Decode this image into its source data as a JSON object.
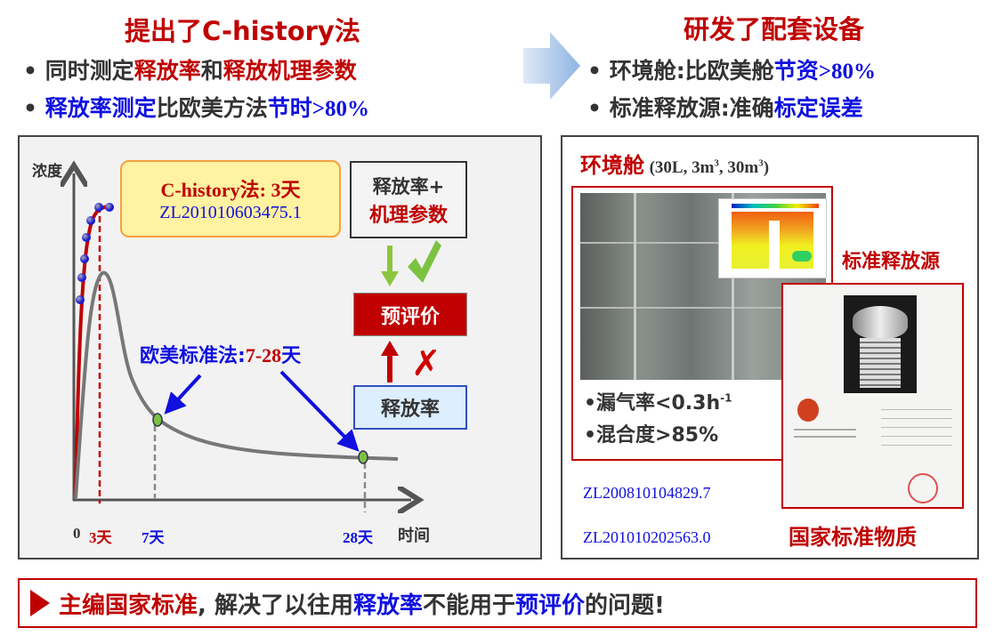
{
  "left": {
    "title": "提出了C-history法",
    "bullet1": {
      "a": "同时测定",
      "b": "释放率",
      "c": "和",
      "d": "释放机理参数"
    },
    "bullet2": {
      "a": "释放率测定",
      "b": "比欧美方法",
      "c": "节时",
      "d": ">80%"
    }
  },
  "right": {
    "title": "研发了配套设备",
    "bullet1": {
      "a": "环境舱:比欧美舱",
      "b": "节资",
      "c": ">80%"
    },
    "bullet2": {
      "a": "标准释放源:准确",
      "b": "标定误差"
    }
  },
  "chart": {
    "ylabel": "浓度",
    "xlabel": "时间",
    "ticks": {
      "zero": "0",
      "t3": "3天",
      "t7": "7天",
      "t28": "28天"
    },
    "chistory": {
      "title": "C-history法: 3天",
      "patent": "ZL201010603475.1"
    },
    "standard": {
      "a": "欧美标准法:",
      "b": "7-28",
      "c": "天"
    },
    "box_top": {
      "a": "释放率+",
      "b": "机理参数"
    },
    "box_mid": "预评价",
    "box_bot": "释放率",
    "check_icon": "green-check",
    "cross_icon": "red-x"
  },
  "equipment": {
    "chamber": {
      "label": "环境舱",
      "sizes": "(30L, 3m",
      "sup1": "3",
      ", ": "",
      "sizes2": ", 30m",
      "sup2": "3",
      "close": ")"
    },
    "leak": {
      "a": "•漏气率<0.3h",
      "sup": "-1"
    },
    "mix": "•混合度>85%",
    "source_label": "标准释放源",
    "patent1": "ZL200810104829.7",
    "patent2": "ZL201010202563.0",
    "national": "国家标准物质"
  },
  "bottom": {
    "a": "主编国家标准",
    "b": ", 解决了以往用",
    "c": "释放率",
    "d": "不能用于",
    "e": "预评价",
    "f": "的问题!"
  },
  "colors": {
    "red": "#c00000",
    "blue": "#1010e0",
    "green": "#7cc242",
    "arrow": "#8fb4e3"
  }
}
